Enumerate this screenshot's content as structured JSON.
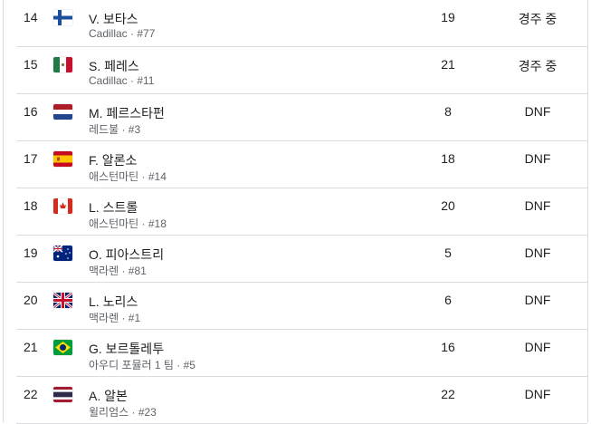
{
  "rows": [
    {
      "pos": "14",
      "flag": "finland-flag-icon",
      "name": "V. 보타스",
      "team": "Cadillac · #77",
      "grid": "19",
      "status": "경주 중"
    },
    {
      "pos": "15",
      "flag": "mexico-flag-icon",
      "name": "S. 페레스",
      "team": "Cadillac · #11",
      "grid": "21",
      "status": "경주 중"
    },
    {
      "pos": "16",
      "flag": "netherlands-flag-icon",
      "name": "M. 페르스타펀",
      "team": "레드불 · #3",
      "grid": "8",
      "status": "DNF"
    },
    {
      "pos": "17",
      "flag": "spain-flag-icon",
      "name": "F. 알론소",
      "team": "애스턴마틴 · #14",
      "grid": "18",
      "status": "DNF"
    },
    {
      "pos": "18",
      "flag": "canada-flag-icon",
      "name": "L. 스트롤",
      "team": "애스턴마틴 · #18",
      "grid": "20",
      "status": "DNF"
    },
    {
      "pos": "19",
      "flag": "australia-flag-icon",
      "name": "O. 피아스트리",
      "team": "맥라렌 · #81",
      "grid": "5",
      "status": "DNF"
    },
    {
      "pos": "20",
      "flag": "uk-flag-icon",
      "name": "L. 노리스",
      "team": "맥라렌 · #1",
      "grid": "6",
      "status": "DNF"
    },
    {
      "pos": "21",
      "flag": "brazil-flag-icon",
      "name": "G. 보르톨레투",
      "team": "아우디 포뮬러 1 팀 · #5",
      "grid": "16",
      "status": "DNF"
    },
    {
      "pos": "22",
      "flag": "thailand-flag-icon",
      "name": "A. 알본",
      "team": "윌리엄스 · #23",
      "grid": "22",
      "status": "DNF"
    }
  ]
}
